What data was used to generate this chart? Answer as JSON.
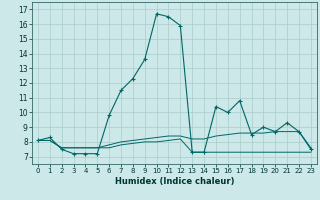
{
  "title": "",
  "xlabel": "Humidex (Indice chaleur)",
  "background_color": "#cce8e8",
  "grid_color": "#aacccc",
  "line_color": "#006666",
  "xlim": [
    -0.5,
    23.5
  ],
  "ylim": [
    6.5,
    17.5
  ],
  "yticks": [
    7,
    8,
    9,
    10,
    11,
    12,
    13,
    14,
    15,
    16,
    17
  ],
  "xticks": [
    0,
    1,
    2,
    3,
    4,
    5,
    6,
    7,
    8,
    9,
    10,
    11,
    12,
    13,
    14,
    15,
    16,
    17,
    18,
    19,
    20,
    21,
    22,
    23
  ],
  "line1_x": [
    0,
    1,
    2,
    3,
    4,
    5,
    6,
    7,
    8,
    9,
    10,
    11,
    12,
    13,
    14,
    15,
    16,
    17,
    18,
    19,
    20,
    21,
    22,
    23
  ],
  "line1_y": [
    8.1,
    8.3,
    7.5,
    7.2,
    7.2,
    7.2,
    9.8,
    11.5,
    12.3,
    13.6,
    16.7,
    16.5,
    15.9,
    7.3,
    7.3,
    10.4,
    10.0,
    10.8,
    8.5,
    9.0,
    8.7,
    9.3,
    8.7,
    7.5
  ],
  "line2_x": [
    0,
    1,
    2,
    3,
    4,
    5,
    6,
    7,
    8,
    9,
    10,
    11,
    12,
    13,
    14,
    15,
    16,
    17,
    18,
    19,
    20,
    21,
    22,
    23
  ],
  "line2_y": [
    8.1,
    8.1,
    7.6,
    7.6,
    7.6,
    7.6,
    7.8,
    8.0,
    8.1,
    8.2,
    8.3,
    8.4,
    8.4,
    8.2,
    8.2,
    8.4,
    8.5,
    8.6,
    8.6,
    8.6,
    8.7,
    8.7,
    8.7,
    7.6
  ],
  "line3_x": [
    0,
    1,
    2,
    3,
    4,
    5,
    6,
    7,
    8,
    9,
    10,
    11,
    12,
    13,
    14,
    15,
    16,
    17,
    18,
    19,
    20,
    21,
    22,
    23
  ],
  "line3_y": [
    8.1,
    8.1,
    7.6,
    7.6,
    7.6,
    7.6,
    7.6,
    7.8,
    7.9,
    8.0,
    8.0,
    8.1,
    8.2,
    7.3,
    7.3,
    7.3,
    7.3,
    7.3,
    7.3,
    7.3,
    7.3,
    7.3,
    7.3,
    7.3
  ]
}
